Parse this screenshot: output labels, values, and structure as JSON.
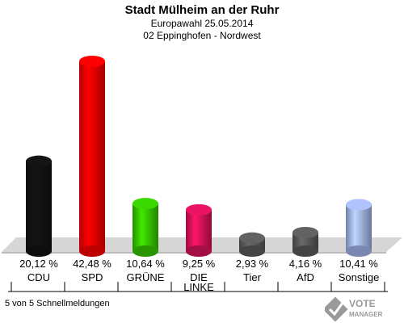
{
  "header": {
    "title": "Stadt Mülheim an der Ruhr",
    "line2": "Europawahl 25.05.2014",
    "line3": "02 Eppinghofen - Nordwest"
  },
  "footer": {
    "note": "5 von 5 Schnellmeldungen",
    "logo_line1": "VOTE",
    "logo_line2": "MANAGER"
  },
  "chart_data": {
    "type": "bar",
    "categories": [
      "CDU",
      "SPD",
      "GRÜNE",
      "DIE LINKE",
      "Tier",
      "AfD",
      "Sonstige"
    ],
    "values": [
      20.12,
      42.48,
      10.64,
      9.25,
      2.93,
      4.16,
      10.41
    ],
    "value_labels": [
      "20,12 %",
      "42,48 %",
      "10,64 %",
      "9,25 %",
      "2,93 %",
      "4,16 %",
      "10,41 %"
    ],
    "colors": [
      "#111111",
      "#ee0000",
      "#33bb00",
      "#cc1155",
      "#555555",
      "#555555",
      "#99aadd"
    ],
    "ylim": [
      0,
      45
    ]
  }
}
